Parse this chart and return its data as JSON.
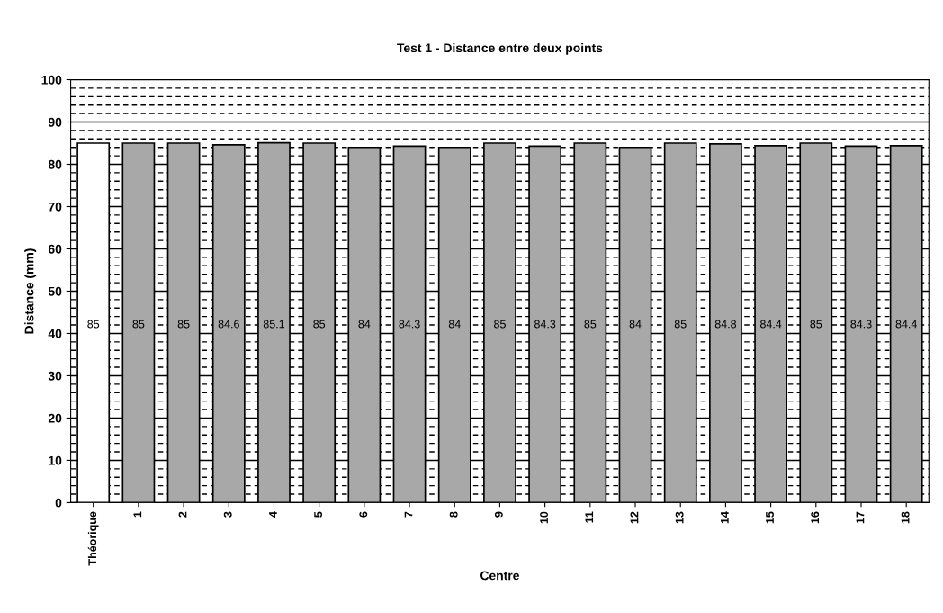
{
  "chart_data": {
    "type": "bar",
    "title": "Test 1 - Distance entre deux points",
    "xlabel": "Centre",
    "ylabel": "Distance (mm)",
    "categories": [
      "Théorique",
      "1",
      "2",
      "3",
      "4",
      "5",
      "6",
      "7",
      "8",
      "9",
      "10",
      "11",
      "12",
      "13",
      "14",
      "15",
      "16",
      "17",
      "18"
    ],
    "values": [
      85,
      85,
      85,
      84.6,
      85.1,
      85,
      84,
      84.3,
      84,
      85,
      84.3,
      85,
      84,
      85,
      84.8,
      84.4,
      85,
      84.3,
      84.4
    ],
    "colors": [
      "#ffffff",
      "#a8a8a8",
      "#a8a8a8",
      "#a8a8a8",
      "#a8a8a8",
      "#a8a8a8",
      "#a8a8a8",
      "#a8a8a8",
      "#a8a8a8",
      "#a8a8a8",
      "#a8a8a8",
      "#a8a8a8",
      "#a8a8a8",
      "#a8a8a8",
      "#a8a8a8",
      "#a8a8a8",
      "#a8a8a8",
      "#a8a8a8",
      "#a8a8a8"
    ],
    "ylim": [
      0,
      100
    ],
    "yticks": [
      0,
      10,
      20,
      30,
      40,
      50,
      60,
      70,
      80,
      90,
      100
    ],
    "grid": "y",
    "data_labels": true
  }
}
